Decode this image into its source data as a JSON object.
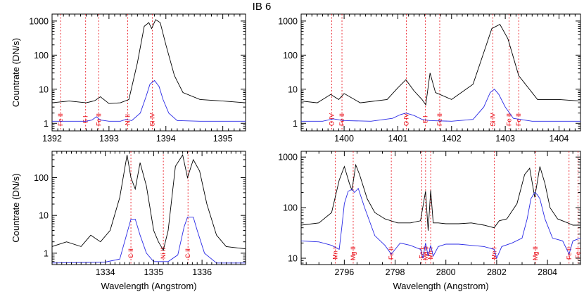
{
  "title": "IB 6",
  "colors": {
    "observed": "#000000",
    "model": "#2a2ae6",
    "lines": "#e8000b"
  },
  "chart_data": [
    {
      "panel": "top-left",
      "type": "line",
      "ylabel": "Countrate (DN/s)",
      "xlabel": "",
      "xlim": [
        1392.0,
        1395.4
      ],
      "ylim": [
        0.6,
        1600
      ],
      "yscale": "log",
      "x_ticks": [
        1392,
        1393,
        1394,
        1395
      ],
      "y_ticks": [
        1,
        10,
        100,
        1000
      ],
      "series": [
        {
          "id": "observed",
          "color": "black",
          "x": [
            1392.0,
            1392.3,
            1392.6,
            1392.75,
            1392.85,
            1393.0,
            1393.2,
            1393.35,
            1393.5,
            1393.62,
            1393.7,
            1393.75,
            1393.82,
            1393.9,
            1394.0,
            1394.15,
            1394.3,
            1394.6,
            1395.0,
            1395.4
          ],
          "y": [
            4,
            4.5,
            4,
            4.6,
            6,
            3.8,
            4,
            5,
            60,
            700,
            900,
            600,
            1100,
            900,
            200,
            25,
            8,
            5,
            4.5,
            4
          ]
        },
        {
          "id": "model",
          "color": "blue",
          "x": [
            1392.0,
            1392.6,
            1392.7,
            1392.78,
            1392.85,
            1393.0,
            1393.2,
            1393.3,
            1393.4,
            1393.55,
            1393.65,
            1393.72,
            1393.8,
            1393.88,
            1393.95,
            1394.05,
            1394.2,
            1394.6,
            1395.4
          ],
          "y": [
            1.15,
            1.15,
            1.25,
            1.55,
            1.25,
            1.15,
            1.15,
            1.3,
            1.2,
            2,
            6,
            14,
            18,
            12,
            5,
            2,
            1.2,
            1.15,
            1.15
          ]
        }
      ],
      "line_ids": [
        {
          "label": "Fe II",
          "x": 1392.15
        },
        {
          "label": "S I",
          "x": 1392.59
        },
        {
          "label": "Fe II",
          "x": 1392.82
        },
        {
          "label": "Ni II",
          "x": 1393.33
        },
        {
          "label": "Si IV",
          "x": 1393.76
        }
      ]
    },
    {
      "panel": "top-right",
      "type": "line",
      "ylabel": "",
      "xlabel": "",
      "xlim": [
        1399.2,
        1404.4
      ],
      "ylim": [
        0.6,
        1600
      ],
      "yscale": "log",
      "x_ticks": [
        1400,
        1401,
        1402,
        1403,
        1404
      ],
      "y_ticks": [
        1,
        10,
        100,
        1000
      ],
      "series": [
        {
          "id": "observed",
          "color": "black",
          "x": [
            1399.2,
            1399.5,
            1399.75,
            1399.9,
            1400.0,
            1400.3,
            1400.8,
            1401.0,
            1401.15,
            1401.3,
            1401.45,
            1401.52,
            1401.6,
            1401.7,
            1402.0,
            1402.4,
            1402.6,
            1402.75,
            1402.9,
            1403.05,
            1403.25,
            1403.6,
            1404.0,
            1404.4
          ],
          "y": [
            4.5,
            4,
            7,
            5,
            7.5,
            4,
            5,
            11,
            19,
            9,
            5,
            3.5,
            30,
            8,
            5,
            14,
            120,
            600,
            800,
            300,
            25,
            5,
            5,
            4.5
          ]
        },
        {
          "id": "model",
          "color": "blue",
          "x": [
            1399.2,
            1399.6,
            1399.8,
            1400.0,
            1400.5,
            1400.9,
            1401.05,
            1401.15,
            1401.3,
            1401.45,
            1401.6,
            1402.0,
            1402.4,
            1402.6,
            1402.72,
            1402.8,
            1402.88,
            1403.0,
            1403.15,
            1403.5,
            1404.4
          ],
          "y": [
            1.15,
            1.15,
            1.35,
            1.2,
            1.15,
            1.4,
            1.8,
            2,
            1.7,
            1.3,
            1.2,
            1.15,
            1.3,
            3,
            8,
            10,
            7,
            3,
            1.4,
            1.15,
            1.15
          ]
        }
      ],
      "line_ids": [
        {
          "label": "O IV",
          "x": 1399.77
        },
        {
          "label": "Fe II",
          "x": 1399.96
        },
        {
          "label": "O IV",
          "x": 1401.16
        },
        {
          "label": "S I",
          "x": 1401.51
        },
        {
          "label": "Fe II",
          "x": 1401.78
        },
        {
          "label": "Si IV",
          "x": 1402.77
        },
        {
          "label": "Fe II",
          "x": 1403.07
        },
        {
          "label": "Fe II",
          "x": 1403.25
        }
      ]
    },
    {
      "panel": "bottom-left",
      "type": "line",
      "ylabel": "Countrate (DN/s)",
      "xlabel": "Wavelength (Angstrom)",
      "xlim": [
        1332.9,
        1336.9
      ],
      "ylim": [
        0.5,
        500
      ],
      "yscale": "log",
      "x_ticks": [
        1334,
        1335,
        1336
      ],
      "y_ticks": [
        1,
        10,
        100
      ],
      "series": [
        {
          "id": "observed",
          "color": "black",
          "x": [
            1332.9,
            1333.2,
            1333.5,
            1333.7,
            1333.9,
            1334.1,
            1334.3,
            1334.45,
            1334.53,
            1334.62,
            1334.72,
            1334.85,
            1335.0,
            1335.1,
            1335.2,
            1335.3,
            1335.45,
            1335.6,
            1335.7,
            1335.82,
            1335.95,
            1336.1,
            1336.3,
            1336.5,
            1336.9
          ],
          "y": [
            1.5,
            2,
            1.5,
            3,
            2,
            4,
            30,
            400,
            100,
            50,
            250,
            60,
            4,
            2,
            1.2,
            4,
            200,
            400,
            100,
            300,
            150,
            20,
            3,
            1.5,
            1.3
          ]
        },
        {
          "id": "model",
          "color": "blue",
          "x": [
            1332.9,
            1334.0,
            1334.3,
            1334.42,
            1334.53,
            1334.62,
            1334.72,
            1334.85,
            1335.0,
            1335.3,
            1335.5,
            1335.63,
            1335.7,
            1335.82,
            1335.9,
            1336.05,
            1336.3,
            1336.9
          ],
          "y": [
            0.55,
            0.58,
            0.7,
            2.5,
            8,
            8,
            3,
            1,
            0.6,
            0.6,
            0.9,
            5,
            9,
            9,
            4,
            1,
            0.55,
            0.55
          ]
        }
      ],
      "line_ids": [
        {
          "label": "C II",
          "x": 1334.53
        },
        {
          "label": "Ni II",
          "x": 1335.2
        },
        {
          "label": "C II",
          "x": 1335.71
        }
      ]
    },
    {
      "panel": "bottom-right",
      "type": "line",
      "ylabel": "",
      "xlabel": "Wavelength (Angstrom)",
      "xlim": [
        2794.3,
        2805.3
      ],
      "ylim": [
        7.5,
        1300
      ],
      "yscale": "log",
      "x_ticks": [
        2796,
        2798,
        2800,
        2802,
        2804
      ],
      "y_ticks": [
        10,
        100,
        1000
      ],
      "series": [
        {
          "id": "observed",
          "color": "black",
          "x": [
            2794.3,
            2795.0,
            2795.5,
            2795.8,
            2796.0,
            2796.2,
            2796.3,
            2796.45,
            2796.6,
            2796.9,
            2797.2,
            2797.6,
            2798.1,
            2798.6,
            2799.0,
            2799.2,
            2799.3,
            2799.4,
            2799.5,
            2799.7,
            2800.0,
            2800.5,
            2801.0,
            2801.5,
            2801.9,
            2802.1,
            2802.4,
            2802.8,
            2803.1,
            2803.3,
            2803.5,
            2803.7,
            2803.9,
            2804.1,
            2804.4,
            2804.8,
            2805.0,
            2805.3
          ],
          "y": [
            45,
            50,
            80,
            350,
            650,
            300,
            220,
            700,
            450,
            150,
            80,
            60,
            50,
            50,
            55,
            210,
            35,
            220,
            50,
            50,
            48,
            48,
            50,
            45,
            40,
            55,
            60,
            120,
            450,
            600,
            160,
            650,
            300,
            100,
            60,
            50,
            45,
            45
          ]
        },
        {
          "id": "model",
          "color": "blue",
          "x": [
            2794.3,
            2795.0,
            2795.5,
            2795.8,
            2795.9,
            2796.0,
            2796.15,
            2796.3,
            2796.4,
            2796.55,
            2796.8,
            2797.2,
            2797.6,
            2797.85,
            2798.2,
            2798.6,
            2799.0,
            2799.1,
            2799.2,
            2799.3,
            2799.4,
            2799.5,
            2799.7,
            2800.0,
            2800.5,
            2801.0,
            2801.5,
            2801.9,
            2802.0,
            2802.2,
            2802.6,
            2803.0,
            2803.2,
            2803.35,
            2803.5,
            2803.6,
            2803.7,
            2803.9,
            2804.2,
            2804.6,
            2804.85,
            2805.0,
            2805.3
          ],
          "y": [
            22,
            21,
            18,
            15,
            40,
            120,
            210,
            230,
            200,
            240,
            100,
            28,
            18,
            12,
            20,
            18,
            15,
            10,
            20,
            11,
            18,
            11,
            17,
            19,
            19,
            18,
            17,
            15,
            10,
            17,
            20,
            25,
            60,
            150,
            200,
            180,
            150,
            60,
            25,
            22,
            12,
            22,
            25
          ]
        }
      ],
      "line_ids": [
        {
          "label": "Mn I",
          "x": 2795.64
        },
        {
          "label": "Mg II",
          "x": 2796.35
        },
        {
          "label": "Fe II",
          "x": 2797.85
        },
        {
          "label": "Fe I",
          "x": 2799.05
        },
        {
          "label": "Mg II",
          "x": 2799.2
        },
        {
          "label": "Mn I",
          "x": 2799.4
        },
        {
          "label": "Mn I",
          "x": 2801.91
        },
        {
          "label": "Mg II",
          "x": 2803.53
        },
        {
          "label": "Fe II",
          "x": 2804.85
        },
        {
          "label": "Fe I",
          "x": 2805.2
        }
      ]
    }
  ]
}
